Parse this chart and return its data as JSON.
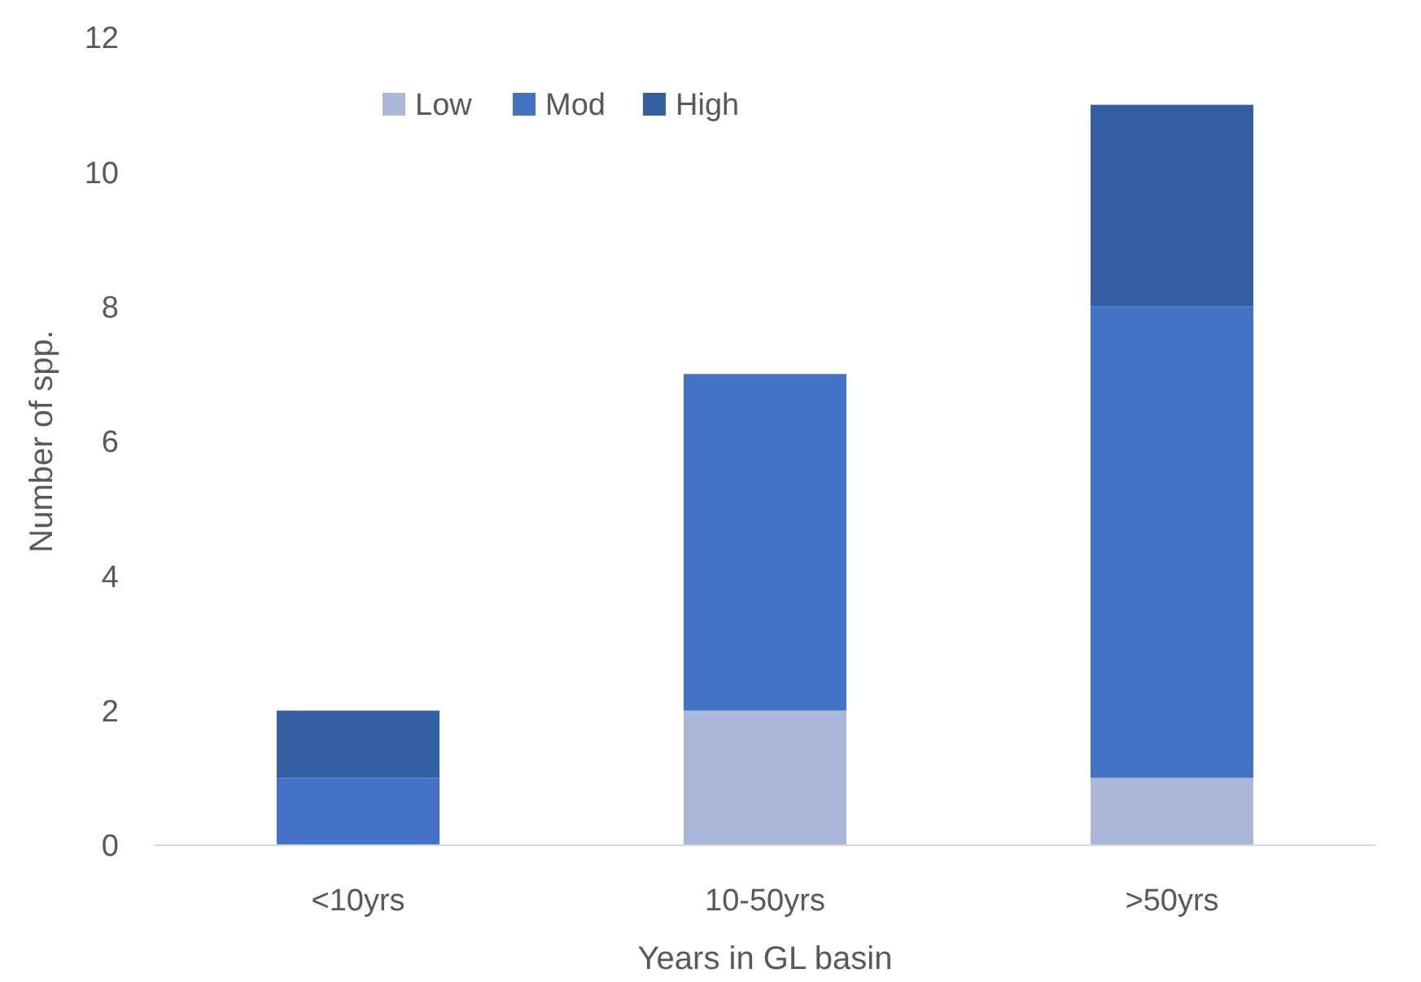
{
  "chart_data": {
    "type": "bar",
    "stacked": true,
    "xlabel": "Years in GL basin",
    "ylabel": "Number of spp.",
    "categories": [
      "<10yrs",
      "10-50yrs",
      ">50yrs"
    ],
    "series": [
      {
        "name": "Low",
        "color": "#a9b7db",
        "values": [
          0,
          2,
          1
        ]
      },
      {
        "name": "Mod",
        "color": "#4472c4",
        "values": [
          1,
          5,
          7
        ]
      },
      {
        "name": "High",
        "color": "#355fa3",
        "values": [
          1,
          0,
          3
        ]
      }
    ],
    "ylim": [
      0,
      12
    ],
    "yticks": [
      0,
      2,
      4,
      6,
      8,
      10,
      12
    ],
    "grid": false,
    "legend": "top"
  }
}
